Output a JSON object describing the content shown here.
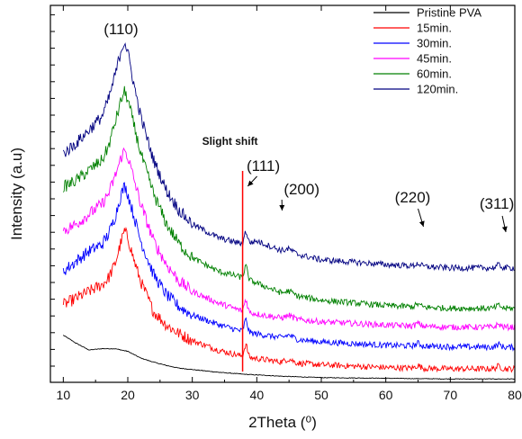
{
  "chart_data": {
    "type": "line",
    "xlabel": "2Theta (⁰)",
    "ylabel": "Intensity (a.u)",
    "xlim": [
      8,
      80
    ],
    "xticks": [
      10,
      20,
      30,
      40,
      50,
      60,
      70,
      80
    ],
    "yticks_labeled": false,
    "grid": false,
    "legend_position": "top-right",
    "series": [
      {
        "name": "Pristine PVA",
        "color": "#000000",
        "x": [
          10,
          12,
          14,
          16,
          18,
          20,
          22,
          24,
          26,
          28,
          30,
          34,
          38,
          44,
          50,
          60,
          70,
          80
        ],
        "y": [
          0.7,
          0.58,
          0.48,
          0.5,
          0.5,
          0.46,
          0.36,
          0.3,
          0.25,
          0.21,
          0.19,
          0.15,
          0.12,
          0.09,
          0.07,
          0.06,
          0.05,
          0.05
        ]
      },
      {
        "name": "15min.",
        "color": "#ff0000",
        "x": [
          10,
          12,
          14,
          16,
          17,
          18,
          19,
          19.5,
          20,
          21,
          22,
          24,
          26,
          28,
          30,
          34,
          38,
          44,
          50,
          60,
          70,
          80
        ],
        "y": [
          1.15,
          1.25,
          1.35,
          1.45,
          1.55,
          1.75,
          2.1,
          2.25,
          2.15,
          1.8,
          1.5,
          1.05,
          0.85,
          0.72,
          0.62,
          0.48,
          0.38,
          0.3,
          0.26,
          0.22,
          0.2,
          0.2
        ]
      },
      {
        "name": "30min.",
        "color": "#0000ff",
        "x": [
          10,
          12,
          14,
          16,
          17,
          18,
          19,
          19.5,
          20,
          21,
          22,
          24,
          26,
          28,
          30,
          34,
          38,
          44,
          50,
          60,
          70,
          80
        ],
        "y": [
          1.65,
          1.8,
          1.95,
          2.05,
          2.2,
          2.45,
          2.8,
          2.92,
          2.8,
          2.45,
          2.1,
          1.6,
          1.3,
          1.12,
          1.0,
          0.86,
          0.75,
          0.66,
          0.6,
          0.55,
          0.53,
          0.52
        ]
      },
      {
        "name": "45min.",
        "color": "#ff00ff",
        "x": [
          10,
          12,
          14,
          16,
          17,
          18,
          19,
          19.5,
          20,
          21,
          22,
          24,
          26,
          28,
          30,
          34,
          38,
          44,
          50,
          60,
          70,
          80
        ],
        "y": [
          2.25,
          2.35,
          2.5,
          2.65,
          2.8,
          3.05,
          3.35,
          3.45,
          3.35,
          3.0,
          2.65,
          2.1,
          1.75,
          1.5,
          1.35,
          1.18,
          1.05,
          0.95,
          0.9,
          0.85,
          0.82,
          0.82
        ]
      },
      {
        "name": "60min.",
        "color": "#008000",
        "x": [
          10,
          12,
          14,
          16,
          17,
          18,
          19,
          19.5,
          20,
          21,
          22,
          24,
          26,
          28,
          30,
          34,
          38,
          44,
          50,
          60,
          70,
          80
        ],
        "y": [
          2.9,
          3.0,
          3.15,
          3.3,
          3.5,
          3.85,
          4.2,
          4.32,
          4.2,
          3.8,
          3.4,
          2.8,
          2.35,
          2.05,
          1.85,
          1.65,
          1.55,
          1.32,
          1.22,
          1.14,
          1.1,
          1.1
        ]
      },
      {
        "name": "120min.",
        "color": "#000080",
        "x": [
          10,
          12,
          14,
          16,
          17,
          18,
          19,
          19.5,
          20,
          21,
          22,
          24,
          26,
          28,
          30,
          34,
          38,
          40,
          44,
          50,
          60,
          70,
          80
        ],
        "y": [
          3.4,
          3.55,
          3.75,
          3.95,
          4.2,
          4.55,
          4.95,
          5.07,
          4.9,
          4.4,
          3.95,
          3.3,
          2.85,
          2.55,
          2.35,
          2.15,
          2.05,
          2.1,
          1.95,
          1.82,
          1.75,
          1.7,
          1.7
        ]
      }
    ],
    "annotations": [
      {
        "text": "(110)",
        "x": 19.5
      },
      {
        "text": "(111)",
        "x": 38.5
      },
      {
        "text": "(200)",
        "x": 45
      },
      {
        "text": "(220)",
        "x": 65
      },
      {
        "text": "(311)",
        "x": 77.5
      },
      {
        "text": "Slight shift",
        "x": 37.8
      }
    ]
  }
}
